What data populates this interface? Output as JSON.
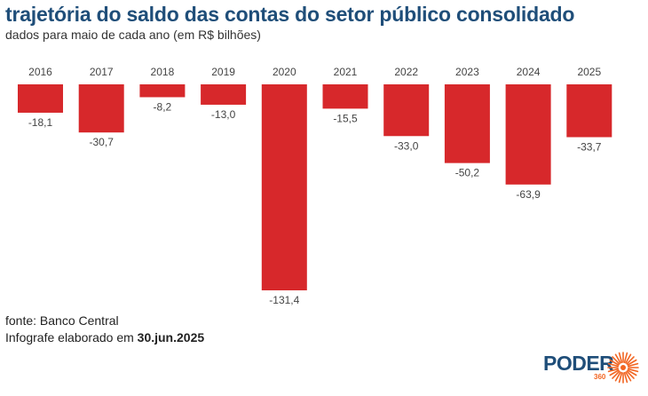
{
  "title": "trajetória do saldo das contas do setor público consolidado",
  "subtitle": "dados para maio de cada ano (em R$ bilhões)",
  "source": {
    "line1": "fonte: Banco Central",
    "line2_prefix": "Infografe elaborado em ",
    "line2_date": "30.jun.2025"
  },
  "logo": {
    "word": "PODER",
    "sub": "360"
  },
  "colors": {
    "bar": "#d7282b",
    "title": "#1f4e79",
    "logo_sun": "#f26522"
  },
  "chart_data": {
    "type": "bar",
    "categories": [
      "2016",
      "2017",
      "2018",
      "2019",
      "2020",
      "2021",
      "2022",
      "2023",
      "2024",
      "2025"
    ],
    "values": [
      -18.1,
      -30.7,
      -8.2,
      -13.0,
      -131.4,
      -15.5,
      -33.0,
      -50.2,
      -63.9,
      -33.7
    ],
    "value_labels": [
      "-18,1",
      "-30,7",
      "-8,2",
      "-13,0",
      "-131,4",
      "-15,5",
      "-33,0",
      "-50,2",
      "-63,9",
      "-33,7"
    ],
    "title": "trajetória do saldo das contas do setor público consolidado",
    "subtitle": "dados para maio de cada ano (em R$ bilhões)",
    "xlabel": "",
    "ylabel": "",
    "ylim": [
      -131.4,
      0
    ],
    "grid": false,
    "legend": "none",
    "orientation": "vertical, negative values hanging down from a zero baseline"
  }
}
